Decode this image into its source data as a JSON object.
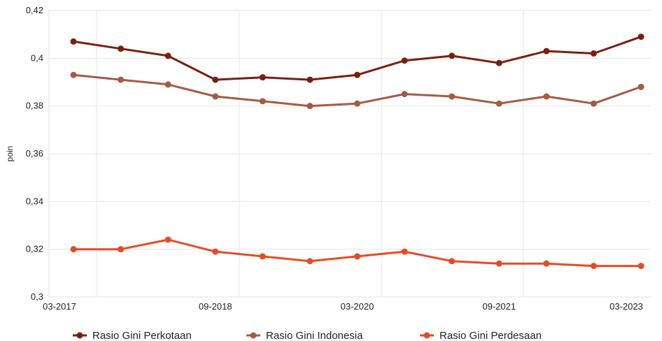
{
  "chart_data": {
    "type": "line",
    "ylabel": "poin",
    "xlabel": "",
    "ylim": [
      0.3,
      0.42
    ],
    "y_ticks": [
      "0,3",
      "0,32",
      "0,34",
      "0,36",
      "0,38",
      "0,4",
      "0,42"
    ],
    "x_tick_labels": [
      "03-2017",
      "09-2018",
      "03-2020",
      "09-2021",
      "03-2023"
    ],
    "categories": [
      "03-2017",
      "09-2017",
      "03-2018",
      "09-2018",
      "03-2019",
      "09-2019",
      "03-2020",
      "09-2020",
      "03-2021",
      "09-2021",
      "03-2022",
      "09-2022",
      "03-2023"
    ],
    "series": [
      {
        "name": "Rasio Gini Perkotaan",
        "color": "#7a1f0e",
        "values": [
          0.407,
          0.404,
          0.401,
          0.391,
          0.392,
          0.391,
          0.393,
          0.399,
          0.401,
          0.398,
          0.403,
          0.402,
          0.409
        ]
      },
      {
        "name": "Rasio Gini Indonesia",
        "color": "#a55b43",
        "values": [
          0.393,
          0.391,
          0.389,
          0.384,
          0.382,
          0.38,
          0.381,
          0.385,
          0.384,
          0.381,
          0.384,
          0.381,
          0.388
        ]
      },
      {
        "name": "Rasio Gini Perdesaan",
        "color": "#e84a27",
        "values": [
          0.32,
          0.32,
          0.324,
          0.319,
          0.317,
          0.315,
          0.317,
          0.319,
          0.315,
          0.314,
          0.314,
          0.313,
          0.313
        ]
      }
    ],
    "grid": true,
    "legend_position": "bottom"
  }
}
